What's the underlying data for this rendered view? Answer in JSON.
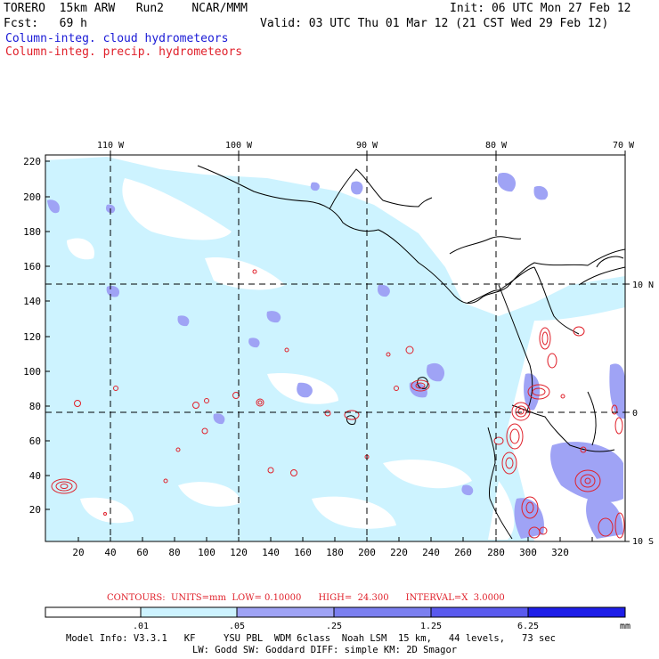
{
  "header": {
    "model_line": "TORERO  15km ARW   Run2    NCAR/MMM",
    "init_line": "Init: 06 UTC Mon 27 Feb 12",
    "fcst_line": "Fcst:   69 h",
    "valid_line": "Valid: 03 UTC Thu 01 Mar 12 (21 CST Wed 29 Feb 12)",
    "cloud_legend": "Column-integ. cloud hydrometeors",
    "precip_legend": "Column-integ. precip. hydrometeors"
  },
  "map": {
    "top_lon_labels": [
      "110 W",
      "100 W",
      "90 W",
      "80 W",
      "70 W"
    ],
    "right_lat_labels": [
      "10 N",
      "0",
      "10 S"
    ],
    "left_y_ticks": [
      "220",
      "200",
      "180",
      "160",
      "140",
      "120",
      "100",
      "80",
      "60",
      "40",
      "20"
    ],
    "bottom_x_ticks": [
      "20",
      "40",
      "60",
      "80",
      "100",
      "120",
      "140",
      "160",
      "180",
      "200",
      "220",
      "240",
      "260",
      "280",
      "300",
      "320"
    ],
    "colors": {
      "cloud_light": "#cdf3ff",
      "cloud_mid": "#9fa3f5",
      "precip_contour": "#e0202a",
      "coast": "#000000",
      "grid": "#000000"
    }
  },
  "contour_info": {
    "contours_label": "CONTOURS:  UNITS=mm  LOW= 0.10000      HIGH=  24.300      INTERVAL=X  3.0000"
  },
  "colorbar": {
    "ticks": [
      ".01",
      ".05",
      ".25",
      "1.25",
      "6.25"
    ],
    "units": "mm",
    "colors": [
      "#ffffff",
      "#cdf3ff",
      "#9fa3f5",
      "#7b7ff0",
      "#5a5aee",
      "#1e1ee8"
    ]
  },
  "footer": {
    "line1": "Model Info: V3.3.1   KF     YSU PBL  WDM 6class  Noah LSM  15 km,   44 levels,   73 sec",
    "line2": "LW: Godd SW: Goddard DIFF: simple KM: 2D Smagor"
  }
}
